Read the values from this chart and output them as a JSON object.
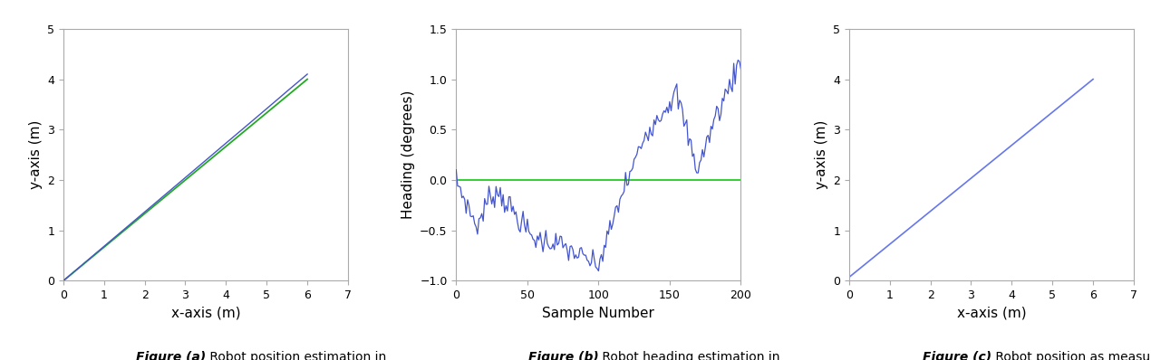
{
  "fig_a": {
    "xlabel": "x-axis (m)",
    "ylabel": "y-axis (m)",
    "xlim": [
      0,
      7
    ],
    "ylim": [
      0,
      5
    ],
    "xticks": [
      0,
      1,
      2,
      3,
      4,
      5,
      6,
      7
    ],
    "yticks": [
      0,
      1,
      2,
      3,
      4,
      5
    ],
    "green_x": [
      0,
      6.0
    ],
    "green_y": [
      0,
      4.0
    ],
    "green_color": "#22aa22",
    "blue_color": "#4455cc",
    "caption_bold": "Figure (a)",
    "caption_normal": " Robot position estimation in\nglobal coordinate system."
  },
  "fig_b": {
    "xlabel": "Sample Number",
    "ylabel": "Heading (degrees)",
    "xlim": [
      0,
      200
    ],
    "ylim": [
      -1,
      1.5
    ],
    "xticks": [
      0,
      50,
      100,
      150,
      200
    ],
    "yticks": [
      -1,
      -0.5,
      0,
      0.5,
      1,
      1.5
    ],
    "green_color": "#22cc22",
    "blue_color": "#4455cc",
    "caption_bold": "Figure (b)",
    "caption_normal": " Robot heading estimation in\nglobal coordinate system."
  },
  "fig_c": {
    "xlabel": "x-axis (m)",
    "ylabel": "y-axis (m)",
    "xlim": [
      0,
      7
    ],
    "ylim": [
      0,
      5
    ],
    "xticks": [
      0,
      1,
      2,
      3,
      4,
      5,
      6,
      7
    ],
    "yticks": [
      0,
      1,
      2,
      3,
      4,
      5
    ],
    "blue_x": [
      0,
      6.0
    ],
    "blue_y": [
      0.07,
      4.0
    ],
    "blue_color": "#6677ee",
    "caption_bold": "Figure (c)",
    "caption_normal": " Robot position as measured by\nthe robot’s local coordinate system."
  },
  "background_color": "#ffffff",
  "axes_facecolor": "#f8f8f8",
  "spine_color": "#aaaaaa"
}
